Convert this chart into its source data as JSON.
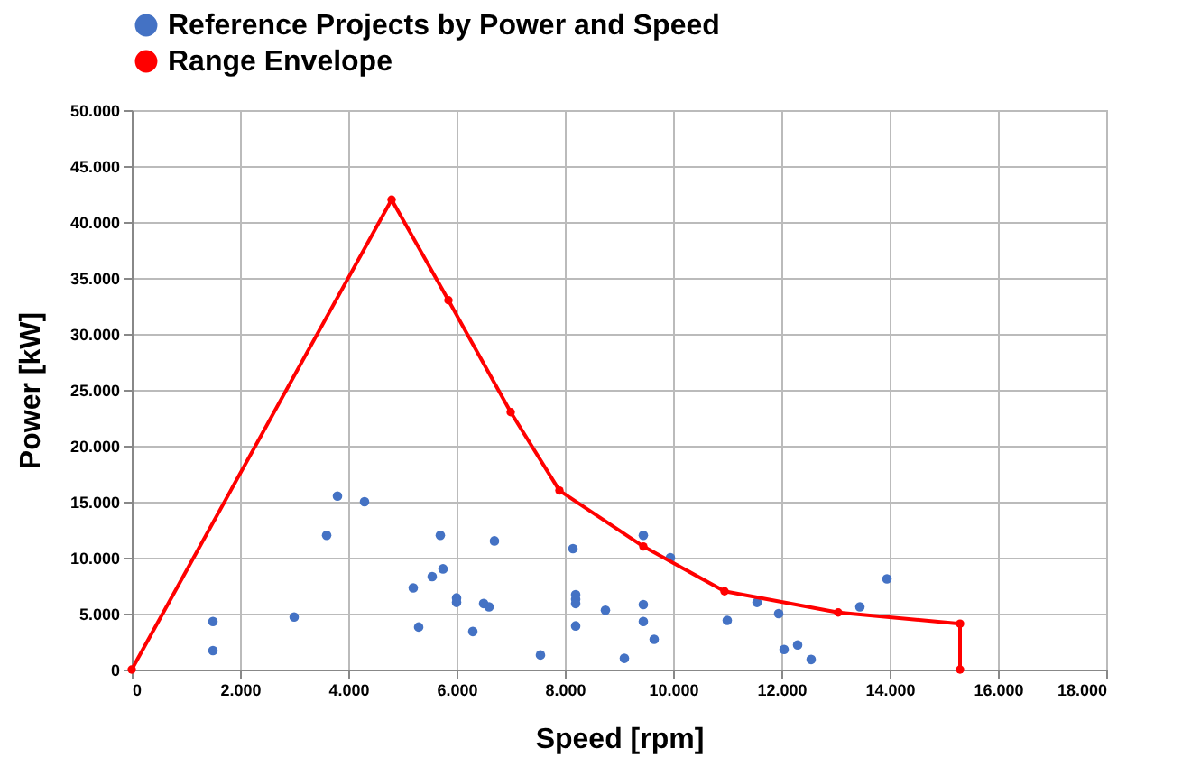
{
  "chart_data": {
    "type": "scatter",
    "xlabel": "Speed [rpm]",
    "ylabel": "Power [kW]",
    "xlim": [
      0,
      18000
    ],
    "ylim": [
      0,
      50000
    ],
    "xticks": [
      0,
      {
        "value": 2000,
        "label": "2.000"
      },
      {
        "value": 4000,
        "label": "4.000"
      },
      {
        "value": 6000,
        "label": "6.000"
      },
      {
        "value": 8000,
        "label": "8.000"
      },
      {
        "value": 10000,
        "label": "10.000"
      },
      {
        "value": 12000,
        "label": "12.000"
      },
      {
        "value": 14000,
        "label": "14.000"
      },
      {
        "value": 16000,
        "label": "16.000"
      },
      {
        "value": 18000,
        "label": "18.000"
      }
    ],
    "yticks": [
      0,
      {
        "value": 5000,
        "label": "5.000"
      },
      {
        "value": 10000,
        "label": "10.000"
      },
      {
        "value": 15000,
        "label": "15.000"
      },
      {
        "value": 20000,
        "label": "20.000"
      },
      {
        "value": 25000,
        "label": "25.000"
      },
      {
        "value": 30000,
        "label": "30.000"
      },
      {
        "value": 35000,
        "label": "35.000"
      },
      {
        "value": 40000,
        "label": "40.000"
      },
      {
        "value": 45000,
        "label": "45.000"
      },
      {
        "value": 50000,
        "label": "50.000"
      }
    ],
    "grid": true,
    "legend": "top",
    "series": [
      {
        "name": "Reference Projects by Power and Speed",
        "marker": "circle",
        "color": "#4472c4",
        "x": [
          1500,
          1500,
          3000,
          3600,
          3800,
          4300,
          5200,
          5300,
          5550,
          5750,
          5700,
          6000,
          6000,
          6300,
          6500,
          6600,
          6700,
          7550,
          8150,
          8200,
          8200,
          8200,
          8200,
          8750,
          9100,
          9450,
          9450,
          9450,
          9650,
          9950,
          11000,
          11550,
          11950,
          12050,
          12300,
          12550,
          13450,
          13950
        ],
        "values": [
          4300,
          1700,
          4700,
          12000,
          15500,
          15000,
          7300,
          3800,
          8300,
          9000,
          12000,
          6400,
          6000,
          3400,
          5900,
          5600,
          11500,
          1300,
          10800,
          6700,
          6300,
          5900,
          3900,
          5300,
          1000,
          12000,
          5800,
          4300,
          2700,
          10000,
          4400,
          6000,
          5000,
          1800,
          2200,
          900,
          5600,
          8100
        ]
      },
      {
        "name": "Range Envelope",
        "type": "line",
        "marker": "circle",
        "color": "#ff0000",
        "x": [
          0,
          4800,
          5850,
          7000,
          7900,
          9450,
          10950,
          13050,
          15300,
          15300
        ],
        "values": [
          0,
          42000,
          33000,
          23000,
          16000,
          11000,
          7000,
          5100,
          4100,
          0
        ]
      }
    ]
  }
}
